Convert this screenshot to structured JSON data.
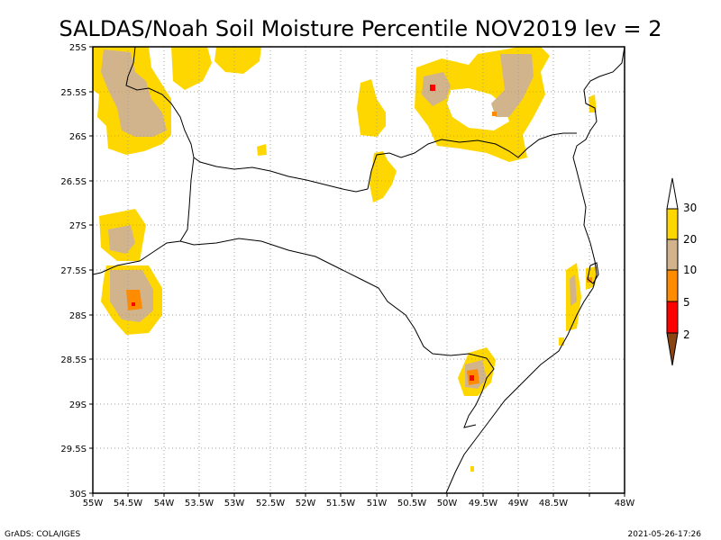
{
  "title": "SALDAS/Noah Soil Moisture Percentile NOV2019 lev = 2",
  "footer": {
    "left": "GrADS: COLA/IGES",
    "right": "2021-05-26-17:26"
  },
  "axes": {
    "x_ticks": [
      "55W",
      "54.5W",
      "54W",
      "53.5W",
      "53W",
      "52.5W",
      "52W",
      "51.5W",
      "51W",
      "50.5W",
      "50W",
      "49.5W",
      "49W",
      "48.5W",
      "48W"
    ],
    "y_ticks": [
      "25S",
      "25.5S",
      "26S",
      "26.5S",
      "27S",
      "27.5S",
      "28S",
      "28.5S",
      "29S",
      "29.5S",
      "30S"
    ]
  },
  "legend": {
    "labels": [
      "30",
      "20",
      "10",
      "5",
      "2"
    ],
    "colors": {
      "c30_20": "#ffd700",
      "c20_10": "#d2b48c",
      "c10_5": "#ff8c00",
      "c5_2": "#ff0000",
      "c_below2": "#8b4513"
    }
  },
  "colors": {
    "yellow": "#ffd700",
    "tan": "#d2b48c",
    "orange": "#ff8c00",
    "red": "#ff0000",
    "brown": "#8b4513",
    "grid": "#a0a0a0"
  }
}
